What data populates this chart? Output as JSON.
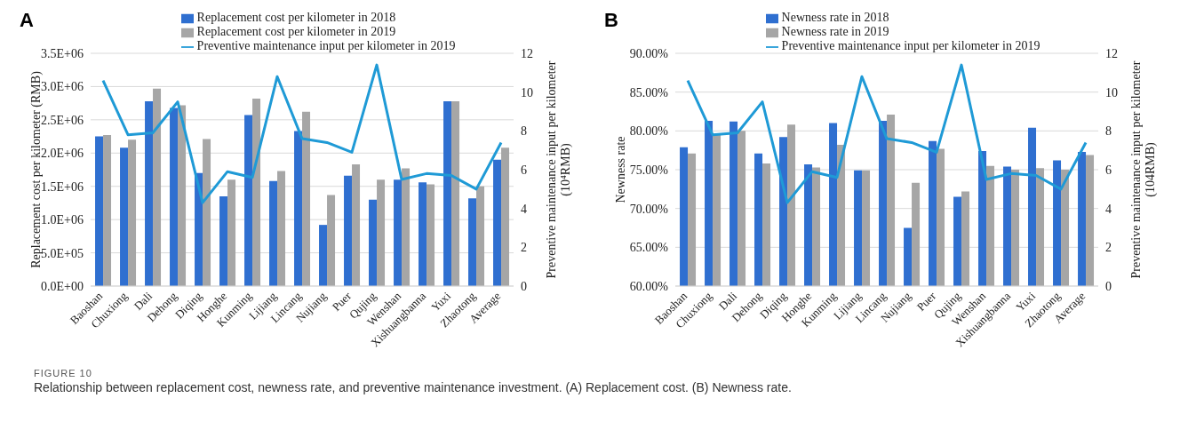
{
  "chart_data": [
    {
      "type": "bar",
      "title": "A",
      "ylabel": "Replacement cost per kilometer (RMB)",
      "y2label": "Preventive maintenance input per kilometer (10⁴RMB)",
      "categories": [
        "Baoshan",
        "Chuxiong",
        "Dali",
        "Dehong",
        "Diqing",
        "Honghe",
        "Kunming",
        "Lijiang",
        "Lincang",
        "Nujiang",
        "Puer",
        "Qujing",
        "Wenshan",
        "Xishuangbanna",
        "Yuxi",
        "Zhaotong",
        "Average"
      ],
      "series": [
        {
          "name": "Replacement cost per kilometer in 2018",
          "color": "#2f6fd0",
          "values": [
            2250000,
            2080000,
            2780000,
            2680000,
            1700000,
            1350000,
            2570000,
            1580000,
            2330000,
            920000,
            1660000,
            1300000,
            1600000,
            1560000,
            2780000,
            1320000,
            1900000
          ]
        },
        {
          "name": "Replacement cost per kilometer in 2019",
          "color": "#a6a6a6",
          "values": [
            2270000,
            2200000,
            2970000,
            2720000,
            2210000,
            1600000,
            2820000,
            1730000,
            2620000,
            1370000,
            1830000,
            1600000,
            1770000,
            1530000,
            2780000,
            1500000,
            2080000
          ]
        },
        {
          "name": "Preventive maintenance input per kilometer in 2019",
          "type": "line",
          "axis": "y2",
          "color": "#1f9ad6",
          "values": [
            10.6,
            7.8,
            7.9,
            9.5,
            4.3,
            5.9,
            5.6,
            10.8,
            7.6,
            7.4,
            6.9,
            11.4,
            5.5,
            5.8,
            5.7,
            5.0,
            7.4
          ]
        }
      ],
      "ylim": [
        0,
        3500000
      ],
      "yticks": [
        {
          "value": 0,
          "label": "0.0E+00"
        },
        {
          "value": 500000,
          "label": "5.0E+05"
        },
        {
          "value": 1000000,
          "label": "1.0E+06"
        },
        {
          "value": 1500000,
          "label": "1.5E+06"
        },
        {
          "value": 2000000,
          "label": "2.0E+06"
        },
        {
          "value": 2500000,
          "label": "2.5E+06"
        },
        {
          "value": 3000000,
          "label": "3.0E+06"
        },
        {
          "value": 3500000,
          "label": "3.5E+06"
        }
      ],
      "y2lim": [
        0,
        12
      ],
      "y2ticks": [
        0,
        2,
        4,
        6,
        8,
        10,
        12
      ],
      "grid": "y",
      "legend": "top",
      "marker": "none",
      "annotations": [
        "FIGURE 10",
        "Relationship between replacement cost, newness rate, and preventive maintenance investment. (A) Replacement cost. (B) Newness rate."
      ]
    },
    {
      "type": "bar",
      "title": "B",
      "ylabel": "Newness rate",
      "y2label": "Preventive maintenance input per kilometer (104RMB)",
      "categories": [
        "Baoshan",
        "Chuxiong",
        "Dali",
        "Dehong",
        "Diqing",
        "Honghe",
        "Kunming",
        "Lijiang",
        "Lincang",
        "Nujiang",
        "Puer",
        "Qujing",
        "Wenshan",
        "Xishuangbanna",
        "Yuxi",
        "Zhaotong",
        "Average"
      ],
      "series": [
        {
          "name": "Newness rate in 2018",
          "color": "#2f6fd0",
          "values": [
            77.9,
            81.3,
            81.2,
            77.1,
            79.2,
            75.7,
            81.0,
            74.9,
            81.3,
            67.5,
            78.7,
            71.5,
            77.4,
            75.4,
            80.4,
            76.2,
            77.3
          ]
        },
        {
          "name": "Newness rate in 2019",
          "color": "#a6a6a6",
          "values": [
            77.1,
            79.5,
            80.0,
            75.8,
            80.8,
            75.3,
            78.2,
            74.9,
            82.1,
            73.3,
            77.7,
            72.2,
            75.5,
            75.0,
            75.2,
            75.0,
            76.9
          ]
        },
        {
          "name": "Preventive maintenance input per kilometer in 2019",
          "type": "line",
          "axis": "y2",
          "color": "#1f9ad6",
          "values": [
            10.6,
            7.8,
            7.9,
            9.5,
            4.3,
            5.9,
            5.6,
            10.8,
            7.6,
            7.4,
            6.9,
            11.4,
            5.5,
            5.8,
            5.7,
            5.0,
            7.4
          ]
        }
      ],
      "ylim": [
        60,
        90
      ],
      "yticks": [
        {
          "value": 60,
          "label": "60.00%"
        },
        {
          "value": 65,
          "label": "65.00%"
        },
        {
          "value": 70,
          "label": "70.00%"
        },
        {
          "value": 75,
          "label": "75.00%"
        },
        {
          "value": 80,
          "label": "80.00%"
        },
        {
          "value": 85,
          "label": "85.00%"
        },
        {
          "value": 90,
          "label": "90.00%"
        }
      ],
      "y2lim": [
        0,
        12
      ],
      "y2ticks": [
        0,
        2,
        4,
        6,
        8,
        10,
        12
      ],
      "grid": "y",
      "legend": "top",
      "marker": "none"
    }
  ]
}
